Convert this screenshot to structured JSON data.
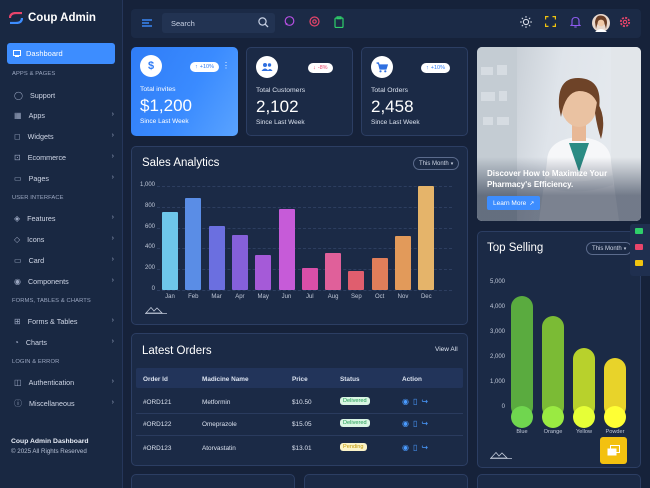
{
  "brand": {
    "name": "Coup Admin"
  },
  "sidebar": {
    "active": {
      "label": "Dashboard"
    },
    "sections": [
      "APPS & PAGES",
      "USER INTERFACE",
      "FORMS, TABLES & CHARTS",
      "LOGIN & ERROR"
    ],
    "items": [
      {
        "label": "Support"
      },
      {
        "label": "Apps"
      },
      {
        "label": "Widgets"
      },
      {
        "label": "Ecommerce"
      },
      {
        "label": "Pages"
      },
      {
        "label": "Features"
      },
      {
        "label": "Icons"
      },
      {
        "label": "Card"
      },
      {
        "label": "Components"
      },
      {
        "label": "Forms & Tables"
      },
      {
        "label": "Charts"
      },
      {
        "label": "Authentication"
      },
      {
        "label": "Miscellaneous"
      }
    ],
    "footer_title": "Coup Admin Dashboard",
    "footer_copy": "© 2025 All Rights Reserved"
  },
  "topbar": {
    "search_placeholder": "Search"
  },
  "stats": [
    {
      "title": "Total invites",
      "value": "$1,200",
      "foot": "Since Last Week",
      "change": "+10%",
      "icon": "dollar-icon"
    },
    {
      "title": "Total Customers",
      "value": "2,102",
      "foot": "Since Last Week",
      "change": "-8%",
      "icon": "users-icon"
    },
    {
      "title": "Total Orders",
      "value": "2,458",
      "foot": "Since Last Week",
      "change": "+10%",
      "icon": "cart-icon"
    }
  ],
  "sales": {
    "title": "Sales Analytics",
    "filter": "This Month",
    "colors": [
      "#6ec6ea",
      "#5a8de6",
      "#6b6fe0",
      "#8560da",
      "#a55ad8",
      "#c65bd8",
      "#d94fa8",
      "#e0609a",
      "#e05e6e",
      "#e07e5a",
      "#e29a5a",
      "#e5b46a"
    ]
  },
  "chart_data": {
    "type": "bar",
    "categories": [
      "Jan",
      "Feb",
      "Mar",
      "Apr",
      "May",
      "Jun",
      "Jul",
      "Aug",
      "Sep",
      "Oct",
      "Nov",
      "Dec"
    ],
    "values": [
      750,
      880,
      620,
      530,
      340,
      780,
      210,
      360,
      180,
      310,
      520,
      1000
    ],
    "yticks": [
      "1,000",
      "800",
      "600",
      "400",
      "200",
      "0"
    ],
    "ylim": [
      0,
      1000
    ]
  },
  "orders": {
    "title": "Latest Orders",
    "view_all": "View All",
    "columns": [
      "Order Id",
      "Madicine Name",
      "Price",
      "Status",
      "Action"
    ],
    "rows": [
      {
        "id": "#ORD121",
        "name": "Metformin",
        "price": "$10.50",
        "status": "Delivered",
        "status_color": "#2ecc71"
      },
      {
        "id": "#ORD122",
        "name": "Omeprazole",
        "price": "$15.05",
        "status": "Delivered",
        "status_color": "#2ecc71"
      },
      {
        "id": "#ORD123",
        "name": "Atorvastatin",
        "price": "$13.01",
        "status": "Pending",
        "status_color": "#f1c40f"
      }
    ]
  },
  "promo": {
    "text": "Discover How to Maximize Your Pharmacy's Efficiency.",
    "button": "Learn More"
  },
  "top_selling": {
    "title": "Top Selling",
    "filter": "This Month",
    "yticks": [
      "5,000",
      "4,000",
      "3,000",
      "2,000",
      "1,000",
      "0"
    ],
    "chart_data": {
      "type": "bar",
      "categories": [
        "Blue",
        "Orange",
        "Yellow",
        "Powder"
      ],
      "values": [
        4500,
        3700,
        2400,
        2000
      ],
      "ylim": [
        0,
        5000
      ]
    },
    "colors": [
      "#5aab3f",
      "#7bbb35",
      "#b8d12c",
      "#e8d32a"
    ]
  }
}
